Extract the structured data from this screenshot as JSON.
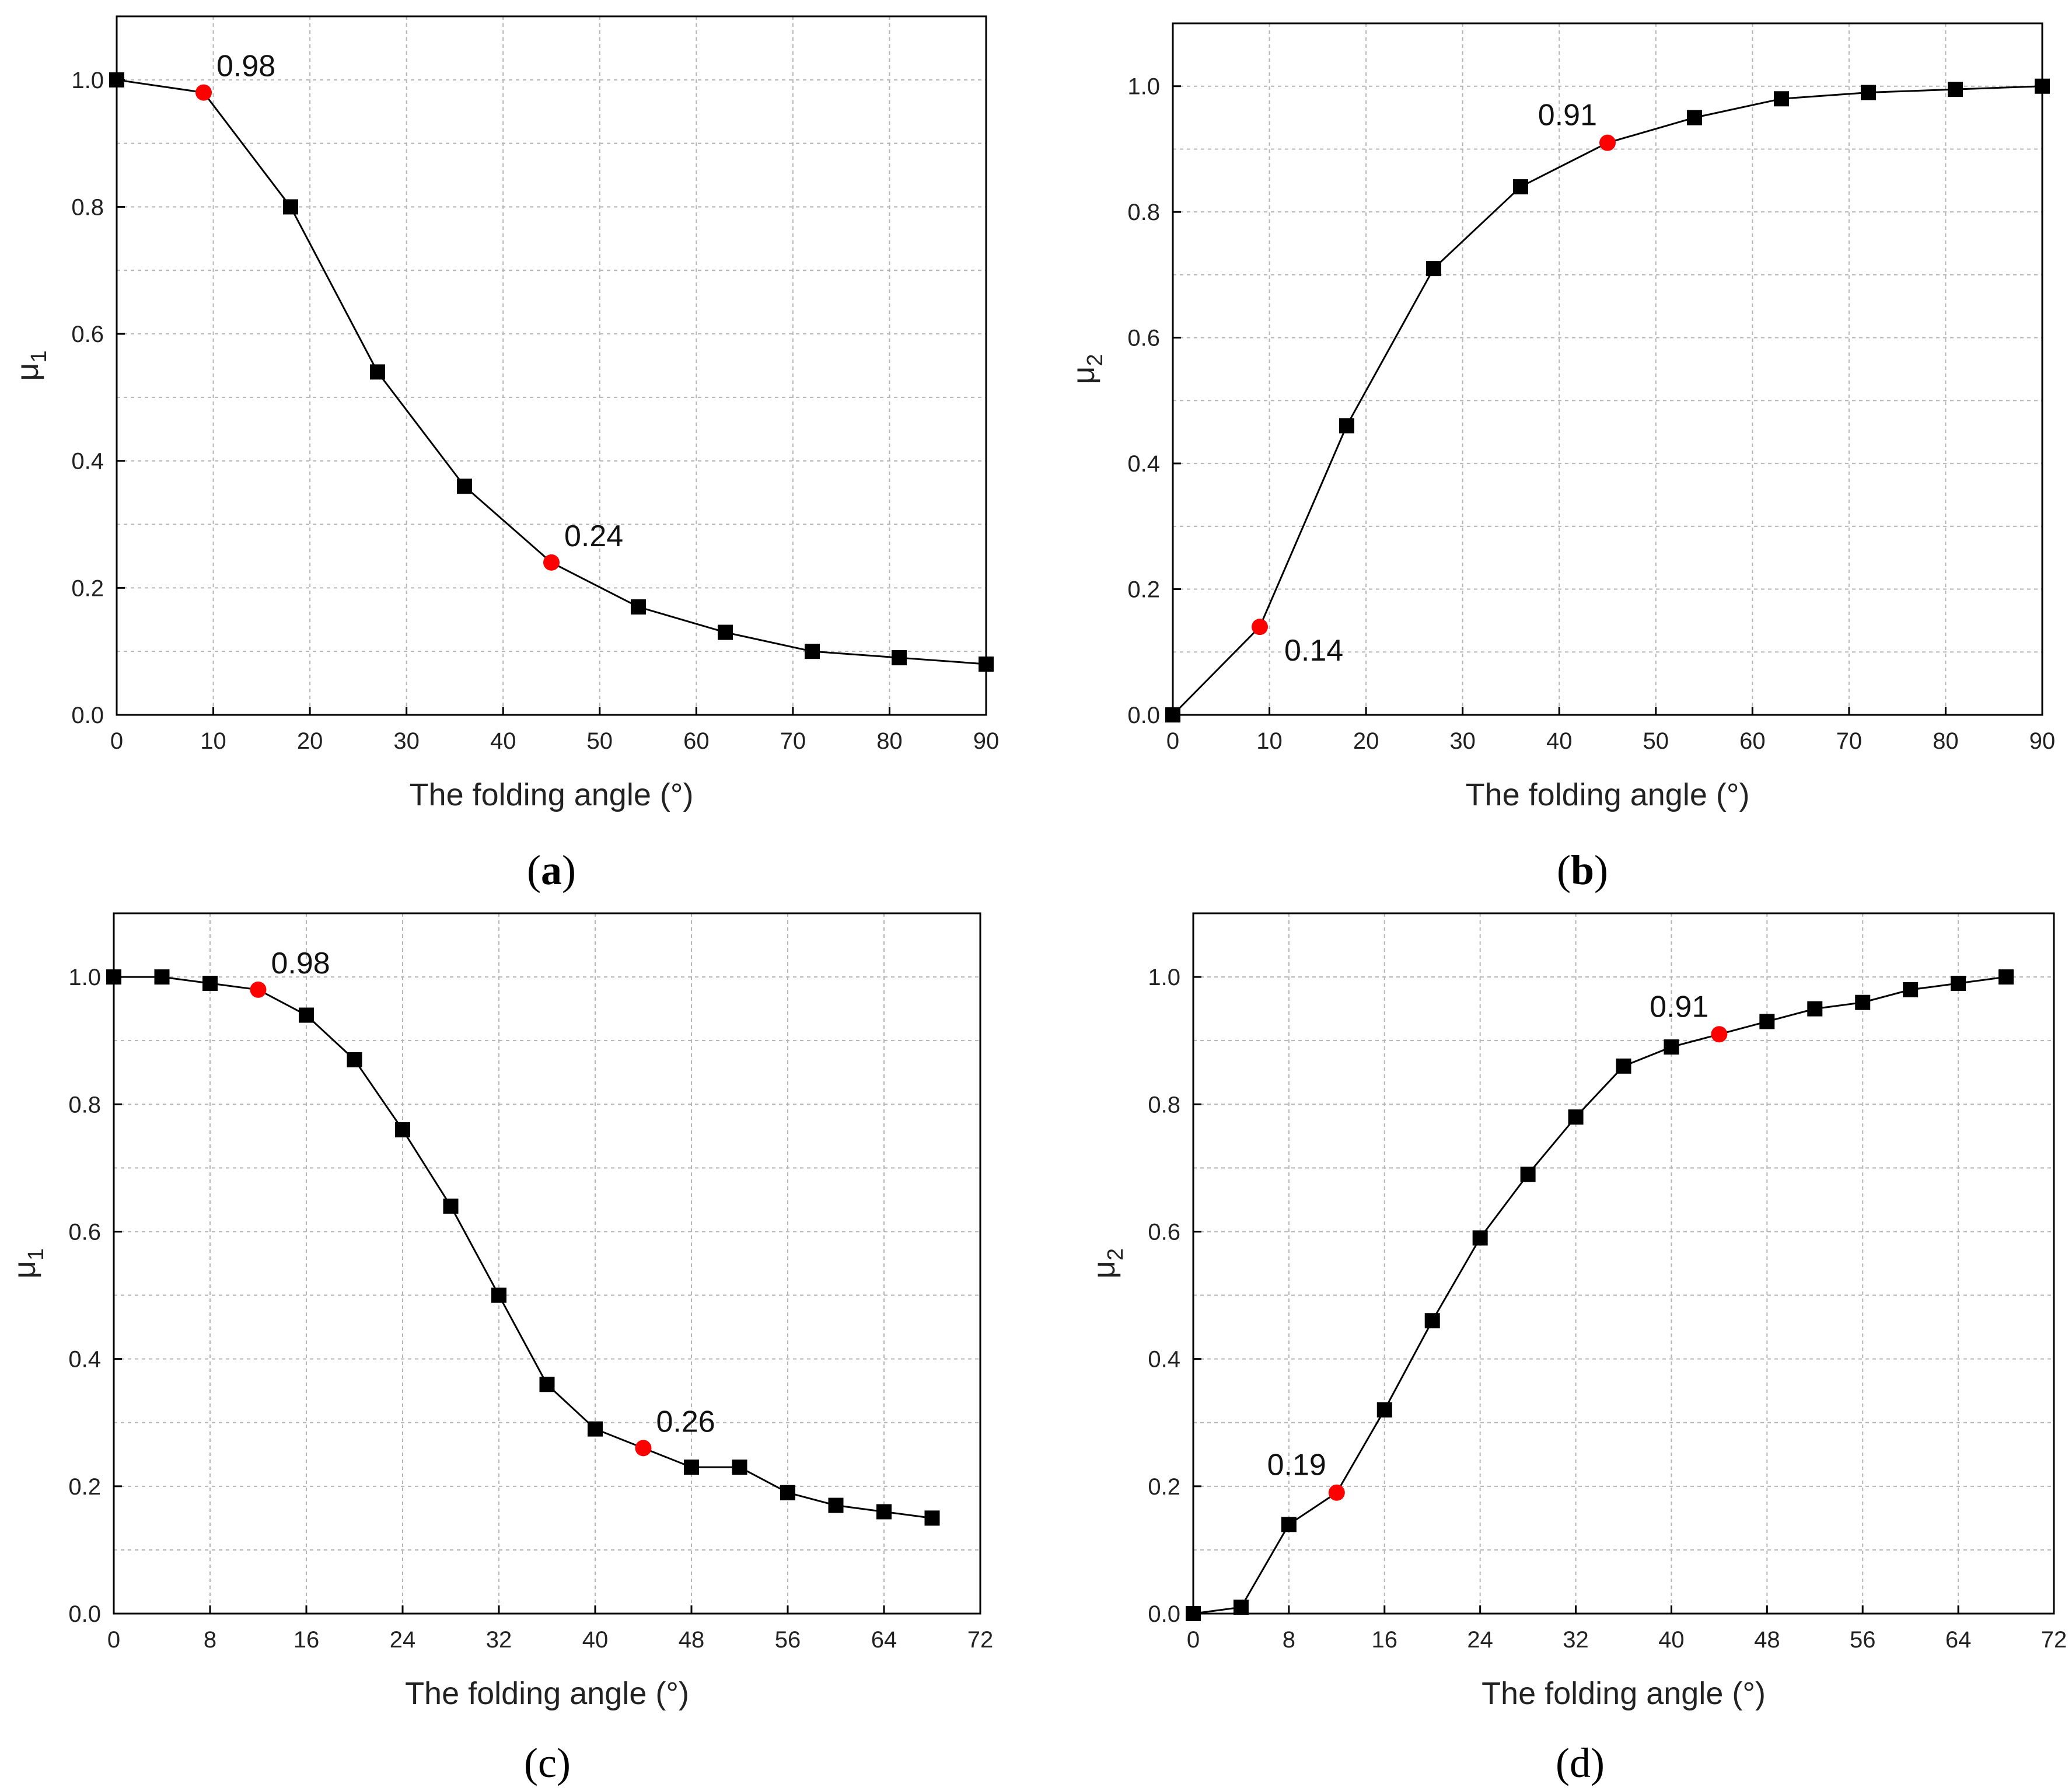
{
  "colors": {
    "marker": "#000000",
    "highlight": "#ff0000",
    "grid": "#b5b5b5"
  },
  "chart_data": [
    {
      "id": "a",
      "type": "line",
      "caption": "(a)",
      "caption_parts": [
        "(",
        "a",
        ")"
      ],
      "caption_style": "bold",
      "xlabel": "The folding angle (°)",
      "ylabel_main": "μ",
      "ylabel_sub": "1",
      "xlim": [
        0,
        90
      ],
      "ylim": [
        0,
        1.1
      ],
      "xticks": [
        0,
        10,
        20,
        30,
        40,
        50,
        60,
        70,
        80,
        90
      ],
      "yticks": [
        0,
        0.2,
        0.4,
        0.6,
        0.8,
        1.0
      ],
      "ytick_labels": [
        "0.0",
        "0.2",
        "0.4",
        "0.6",
        "0.8",
        "1.0"
      ],
      "xgrid": [
        0,
        10,
        20,
        30,
        40,
        50,
        60,
        70,
        80,
        90
      ],
      "ygrid": [
        0,
        0.1,
        0.2,
        0.3,
        0.4,
        0.5,
        0.6,
        0.7,
        0.8,
        0.9,
        1.0,
        1.1
      ],
      "series": [
        {
          "name": "μ1",
          "x": [
            0,
            9,
            18,
            27,
            36,
            45,
            54,
            63,
            72,
            81,
            90
          ],
          "y": [
            1.0,
            0.98,
            0.8,
            0.54,
            0.36,
            0.24,
            0.17,
            0.13,
            0.1,
            0.09,
            0.08
          ],
          "highlight": [
            1,
            5
          ]
        }
      ],
      "annotations": [
        {
          "text": "0.98",
          "x": 9,
          "y": 0.98,
          "place": "upper-right"
        },
        {
          "text": "0.24",
          "x": 45,
          "y": 0.24,
          "place": "upper-right"
        }
      ]
    },
    {
      "id": "b",
      "type": "line",
      "caption": "(b)",
      "caption_parts": [
        "(",
        "b",
        ")"
      ],
      "caption_style": "bold",
      "xlabel": "The folding angle (°)",
      "ylabel_main": "μ",
      "ylabel_sub": "2",
      "xlim": [
        0,
        90
      ],
      "ylim": [
        0,
        1.1
      ],
      "xticks": [
        0,
        10,
        20,
        30,
        40,
        50,
        60,
        70,
        80,
        90
      ],
      "yticks": [
        0,
        0.2,
        0.4,
        0.6,
        0.8,
        1.0
      ],
      "ytick_labels": [
        "0.0",
        "0.2",
        "0.4",
        "0.6",
        "0.8",
        "1.0"
      ],
      "xgrid": [
        0,
        10,
        20,
        30,
        40,
        50,
        60,
        70,
        80,
        90
      ],
      "ygrid": [
        0,
        0.1,
        0.2,
        0.3,
        0.4,
        0.5,
        0.6,
        0.7,
        0.8,
        0.9,
        1.0,
        1.1
      ],
      "series": [
        {
          "name": "μ2",
          "x": [
            0,
            9,
            18,
            27,
            36,
            45,
            54,
            63,
            72,
            81,
            90
          ],
          "y": [
            0.0,
            0.14,
            0.46,
            0.71,
            0.84,
            0.91,
            0.95,
            0.98,
            0.99,
            0.995,
            1.0
          ],
          "highlight": [
            1,
            5
          ]
        }
      ],
      "annotations": [
        {
          "text": "0.14",
          "x": 9,
          "y": 0.14,
          "place": "lower-right"
        },
        {
          "text": "0.91",
          "x": 45,
          "y": 0.91,
          "place": "upper-left"
        }
      ]
    },
    {
      "id": "c",
      "type": "line",
      "caption": "(c)",
      "caption_parts": [
        "(",
        "c",
        ")"
      ],
      "caption_style": "normal",
      "xlabel": "The folding angle (°)",
      "ylabel_main": "μ",
      "ylabel_sub": "1",
      "xlim": [
        0,
        72
      ],
      "ylim": [
        0,
        1.1
      ],
      "xticks": [
        0,
        8,
        16,
        24,
        32,
        40,
        48,
        56,
        64,
        72
      ],
      "yticks": [
        0,
        0.2,
        0.4,
        0.6,
        0.8,
        1.0
      ],
      "ytick_labels": [
        "0.0",
        "0.2",
        "0.4",
        "0.6",
        "0.8",
        "1.0"
      ],
      "xgrid": [
        0,
        8,
        16,
        24,
        32,
        40,
        48,
        56,
        64,
        72
      ],
      "ygrid": [
        0,
        0.1,
        0.2,
        0.3,
        0.4,
        0.5,
        0.6,
        0.7,
        0.8,
        0.9,
        1.0,
        1.1
      ],
      "series": [
        {
          "name": "μ1",
          "x": [
            0,
            4,
            8,
            12,
            16,
            20,
            24,
            28,
            32,
            36,
            40,
            44,
            48,
            52,
            56,
            60,
            64,
            68
          ],
          "y": [
            1.0,
            1.0,
            0.99,
            0.98,
            0.94,
            0.87,
            0.76,
            0.64,
            0.5,
            0.36,
            0.29,
            0.26,
            0.23,
            0.23,
            0.19,
            0.17,
            0.16,
            0.15
          ],
          "highlight": [
            3,
            11
          ]
        }
      ],
      "annotations": [
        {
          "text": "0.98",
          "x": 12,
          "y": 0.98,
          "place": "upper-right"
        },
        {
          "text": "0.26",
          "x": 44,
          "y": 0.26,
          "place": "upper-right"
        }
      ]
    },
    {
      "id": "d",
      "type": "line",
      "caption": "(d)",
      "caption_parts": [
        "(",
        "d",
        ")"
      ],
      "caption_style": "normal",
      "xlabel": "The folding angle (°)",
      "ylabel_main": "μ",
      "ylabel_sub": "2",
      "xlim": [
        0,
        72
      ],
      "ylim": [
        0,
        1.1
      ],
      "xticks": [
        0,
        8,
        16,
        24,
        32,
        40,
        48,
        56,
        64,
        72
      ],
      "yticks": [
        0,
        0.2,
        0.4,
        0.6,
        0.8,
        1.0
      ],
      "ytick_labels": [
        "0.0",
        "0.2",
        "0.4",
        "0.6",
        "0.8",
        "1.0"
      ],
      "xgrid": [
        0,
        8,
        16,
        24,
        32,
        40,
        48,
        56,
        64,
        72
      ],
      "ygrid": [
        0,
        0.1,
        0.2,
        0.3,
        0.4,
        0.5,
        0.6,
        0.7,
        0.8,
        0.9,
        1.0,
        1.1
      ],
      "series": [
        {
          "name": "μ2",
          "x": [
            0,
            4,
            8,
            12,
            16,
            20,
            24,
            28,
            32,
            36,
            40,
            44,
            48,
            52,
            56,
            60,
            64,
            68
          ],
          "y": [
            0.0,
            0.01,
            0.14,
            0.19,
            0.32,
            0.46,
            0.59,
            0.69,
            0.78,
            0.86,
            0.89,
            0.91,
            0.93,
            0.95,
            0.96,
            0.98,
            0.99,
            1.0
          ],
          "highlight": [
            3,
            11
          ]
        }
      ],
      "annotations": [
        {
          "text": "0.19",
          "x": 12,
          "y": 0.19,
          "place": "upper-left"
        },
        {
          "text": "0.91",
          "x": 44,
          "y": 0.91,
          "place": "upper-left"
        }
      ]
    }
  ]
}
